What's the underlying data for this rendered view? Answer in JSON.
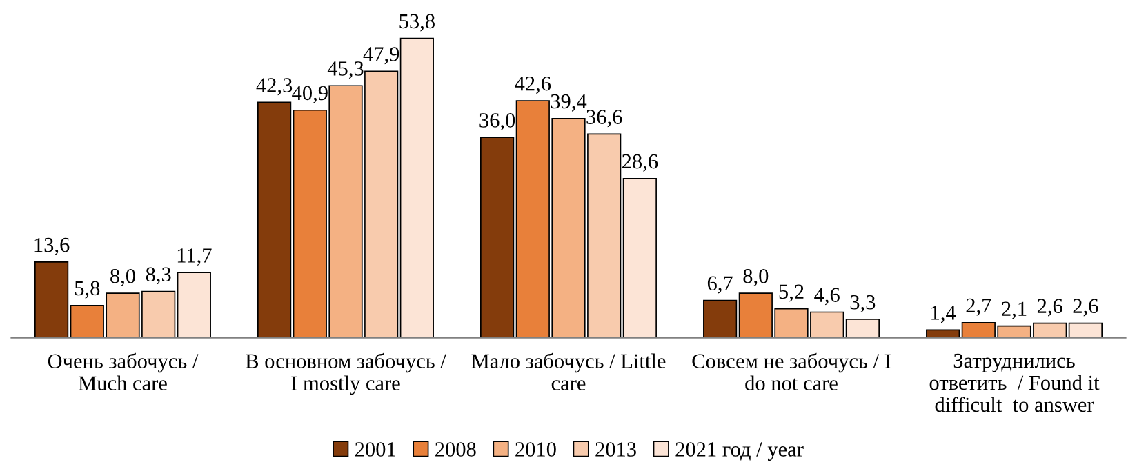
{
  "chart_data": {
    "type": "bar",
    "categories": [
      "Очень забочусь /\nMuch care",
      "В основном забочусь /\nI mostly care",
      "Мало забочусь / Little\ncare",
      "Совсем не забочусь / I\ndo not care",
      "Затруднились\nответить  / Found it\ndifficult  to answer"
    ],
    "series": [
      {
        "name": "2001",
        "color": "#843c0c",
        "values": [
          13.6,
          42.3,
          36.0,
          6.7,
          1.4
        ],
        "value_labels": [
          "13,6",
          "42,3",
          "36,0",
          "6,7",
          "1,4"
        ]
      },
      {
        "name": "2008",
        "color": "#e8803a",
        "values": [
          5.8,
          40.9,
          42.6,
          8.0,
          2.7
        ],
        "value_labels": [
          "5,8",
          "40,9",
          "42,6",
          "8,0",
          "2,7"
        ]
      },
      {
        "name": "2010",
        "color": "#f4b183",
        "values": [
          8.0,
          45.3,
          39.4,
          5.2,
          2.1
        ],
        "value_labels": [
          "8,0",
          "45,3",
          "39,4",
          "5,2",
          "2,1"
        ]
      },
      {
        "name": "2013",
        "color": "#f8cbad",
        "values": [
          8.3,
          47.9,
          36.6,
          4.6,
          2.6
        ],
        "value_labels": [
          "8,3",
          "47,9",
          "36,6",
          "4,6",
          "2,6"
        ]
      },
      {
        "name": "2021 год / year",
        "color": "#fce4d6",
        "values": [
          11.7,
          53.8,
          28.6,
          3.3,
          2.6
        ],
        "value_labels": [
          "11,7",
          "53,8",
          "28,6",
          "3,3",
          "2,6"
        ]
      }
    ],
    "tick_labels": "x",
    "grid": false,
    "legend": "bottom"
  }
}
